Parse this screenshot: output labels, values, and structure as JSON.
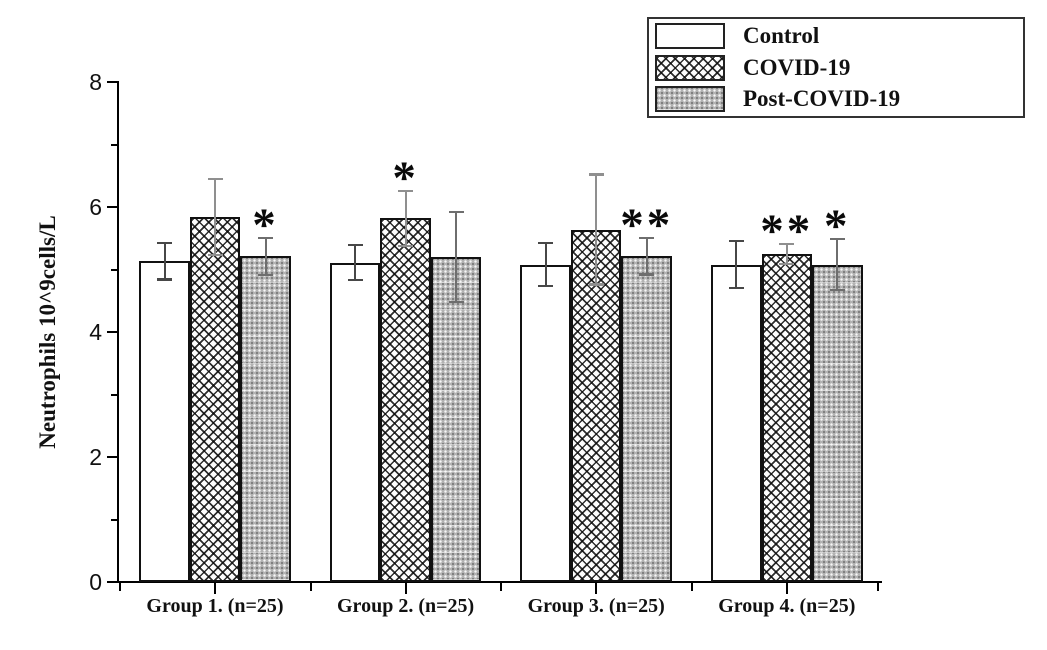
{
  "chart_data": {
    "type": "bar",
    "title": "",
    "xlabel": "",
    "ylabel": "Neutrophils 10^9cells/L",
    "ylim": [
      0,
      8
    ],
    "yticks": [
      0,
      2,
      4,
      6,
      8
    ],
    "yticks_minor": [
      1,
      3,
      5,
      7
    ],
    "grid": "off",
    "categories": [
      "Group 1. (n=25)",
      "Group 2. (n=25)",
      "Group 3. (n=25)",
      "Group 4. (n=25)"
    ],
    "series": [
      {
        "name": "Control",
        "pattern": "plain",
        "error_color": "#474747",
        "values": [
          5.13,
          5.11,
          5.08,
          5.08
        ],
        "errors": [
          0.29,
          0.28,
          0.35,
          0.37
        ],
        "significance": [
          "",
          "",
          "",
          ""
        ]
      },
      {
        "name": "COVID-19",
        "pattern": "crosshatch",
        "error_color": "#8f8f8f",
        "values": [
          5.84,
          5.82,
          5.64,
          5.25
        ],
        "errors": [
          0.61,
          0.44,
          0.88,
          0.16
        ],
        "significance": [
          "",
          "*",
          "",
          "**"
        ]
      },
      {
        "name": "Post-COVID-19",
        "pattern": "dots",
        "error_color": "#6e6e6e",
        "values": [
          5.21,
          5.2,
          5.21,
          5.08
        ],
        "errors": [
          0.3,
          0.72,
          0.29,
          0.41
        ],
        "significance": [
          "*",
          "",
          "**",
          "*"
        ]
      }
    ],
    "legend": {
      "position": "top-right",
      "entries": [
        "Control",
        "COVID-19",
        "Post-COVID-19"
      ]
    },
    "colors": {
      "axis": "#000000",
      "text": "#111111",
      "bar_border": "#111111",
      "background": "#ffffff"
    }
  }
}
